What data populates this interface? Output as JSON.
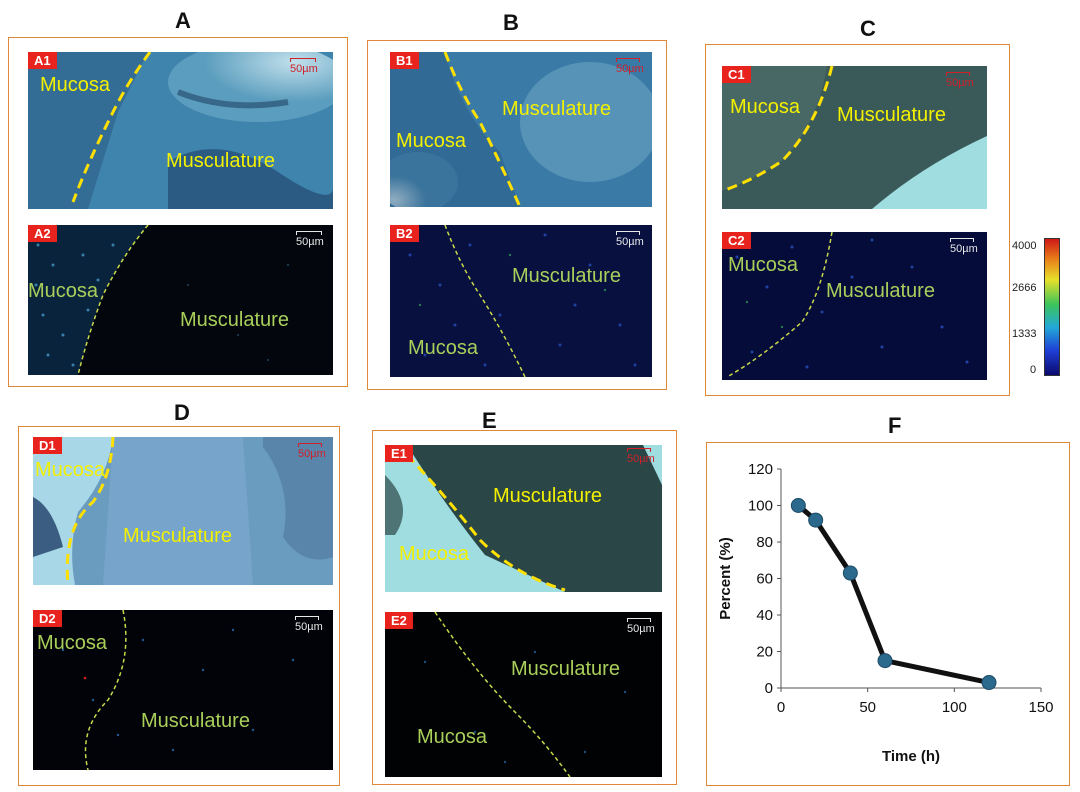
{
  "panels": {
    "A": {
      "letter": "A",
      "top_tag": "A1",
      "bottom_tag": "A2",
      "scale": "50µm",
      "top_labels": [
        "Mucosa",
        "Musculature"
      ],
      "bottom_labels": [
        "Mucosa",
        "Musculature"
      ]
    },
    "B": {
      "letter": "B",
      "top_tag": "B1",
      "bottom_tag": "B2",
      "scale": "50µm",
      "top_labels": [
        "Mucosa",
        "Musculature"
      ],
      "bottom_labels": [
        "Musculature",
        "Mucosa"
      ]
    },
    "C": {
      "letter": "C",
      "top_tag": "C1",
      "bottom_tag": "C2",
      "scale": "50µm",
      "top_labels": [
        "Mucosa",
        "Musculature"
      ],
      "bottom_labels": [
        "Mucosa",
        "Musculature"
      ]
    },
    "D": {
      "letter": "D",
      "top_tag": "D1",
      "bottom_tag": "D2",
      "scale": "50µm",
      "top_labels": [
        "Mucosa",
        "Musculature"
      ],
      "bottom_labels": [
        "Mucosa",
        "Musculature"
      ]
    },
    "E": {
      "letter": "E",
      "top_tag": "E1",
      "bottom_tag": "E2",
      "scale": "50µm",
      "top_labels": [
        "Musculature",
        "Mucosa"
      ],
      "bottom_labels": [
        "Musculature",
        "Mucosa"
      ]
    },
    "F": {
      "letter": "F"
    }
  },
  "colorbar": {
    "ticks": [
      "4000",
      "2666",
      "1333",
      "0"
    ]
  },
  "chart_data": {
    "type": "line",
    "title": "",
    "xlabel": "Time (h)",
    "ylabel": "Percent (%)",
    "x": [
      10,
      20,
      40,
      60,
      120
    ],
    "y": [
      100,
      92,
      63,
      15,
      3
    ],
    "xlim": [
      0,
      150
    ],
    "ylim": [
      0,
      120
    ],
    "xticks": [
      0,
      50,
      100,
      150
    ],
    "yticks": [
      0,
      20,
      40,
      60,
      80,
      100,
      120
    ],
    "marker_color": "#2b6a8c",
    "line_color": "#111111"
  }
}
